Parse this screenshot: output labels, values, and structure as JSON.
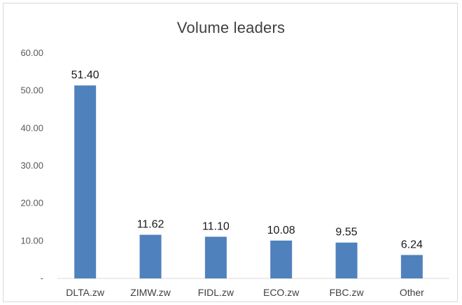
{
  "chart_data": {
    "type": "bar",
    "title": "Volume leaders",
    "categories": [
      "DLTA.zw",
      "ZIMW.zw",
      "FIDL.zw",
      "ECO.zw",
      "FBC.zw",
      "Other"
    ],
    "values": [
      51.4,
      11.62,
      11.1,
      10.08,
      9.55,
      6.24
    ],
    "data_labels": [
      "51.40",
      "11.62",
      "11.10",
      "10.08",
      "9.55",
      "6.24"
    ],
    "ylim": [
      0,
      60
    ],
    "yticks": [
      0,
      10,
      20,
      30,
      40,
      50,
      60
    ],
    "ytick_labels": [
      "-",
      "10.00",
      "20.00",
      "30.00",
      "40.00",
      "50.00",
      "60.00"
    ],
    "xlabel": "",
    "ylabel": "",
    "grid": false,
    "bar_color": "#4f81bd"
  }
}
